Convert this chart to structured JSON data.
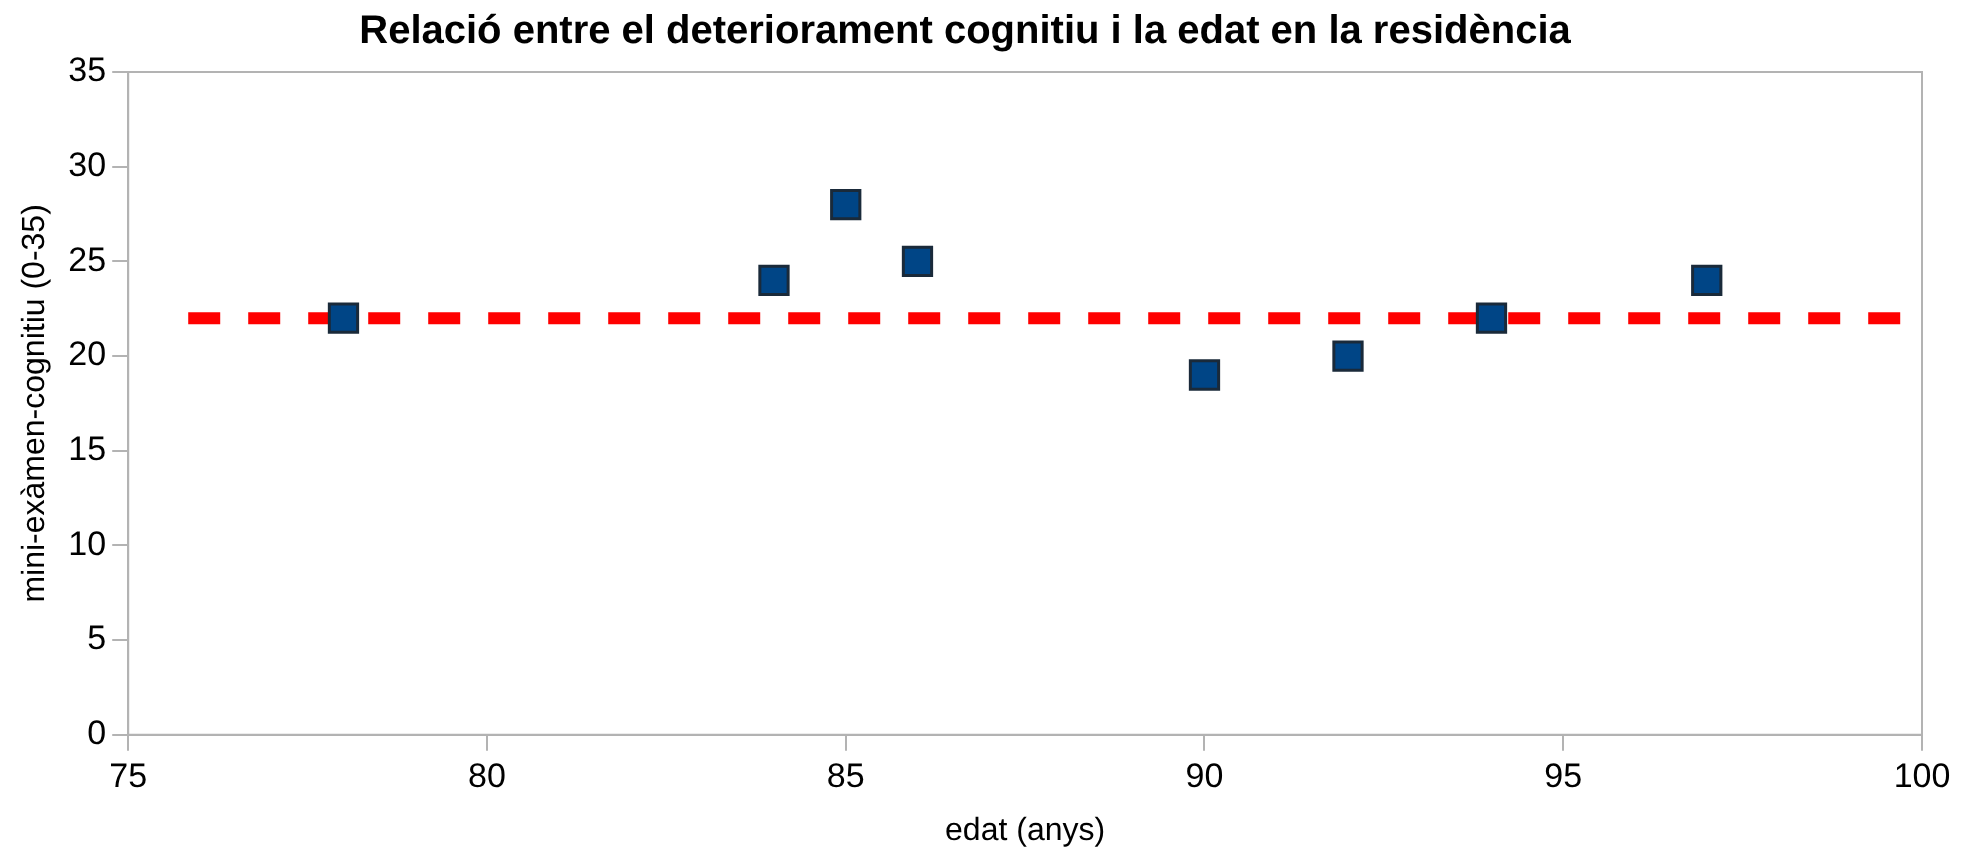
{
  "chart_data": {
    "type": "scatter",
    "title": "Relació entre el deteriorament cognitiu i la edat en la residència",
    "xlabel": "edat (anys)",
    "ylabel": "mini-exàmen-cognitiu (0-35)",
    "series": [
      {
        "color": "#004586",
        "x": [
          78,
          84,
          85,
          86,
          90,
          92,
          94,
          97
        ],
        "values": [
          22,
          24,
          28,
          25,
          19,
          20,
          22,
          24
        ]
      }
    ],
    "xlim": [
      75,
      100
    ],
    "xticks": [
      75,
      80,
      85,
      90,
      95,
      100
    ],
    "ylim": [
      0,
      35
    ],
    "yticks": [
      0,
      5,
      10,
      15,
      20,
      25,
      30,
      35
    ],
    "grid": false,
    "legend": false,
    "marker": "square",
    "ref_lines": [
      {
        "axis": "y",
        "value": 22,
        "color": "#ff0000",
        "line_style": "dashed"
      }
    ]
  }
}
